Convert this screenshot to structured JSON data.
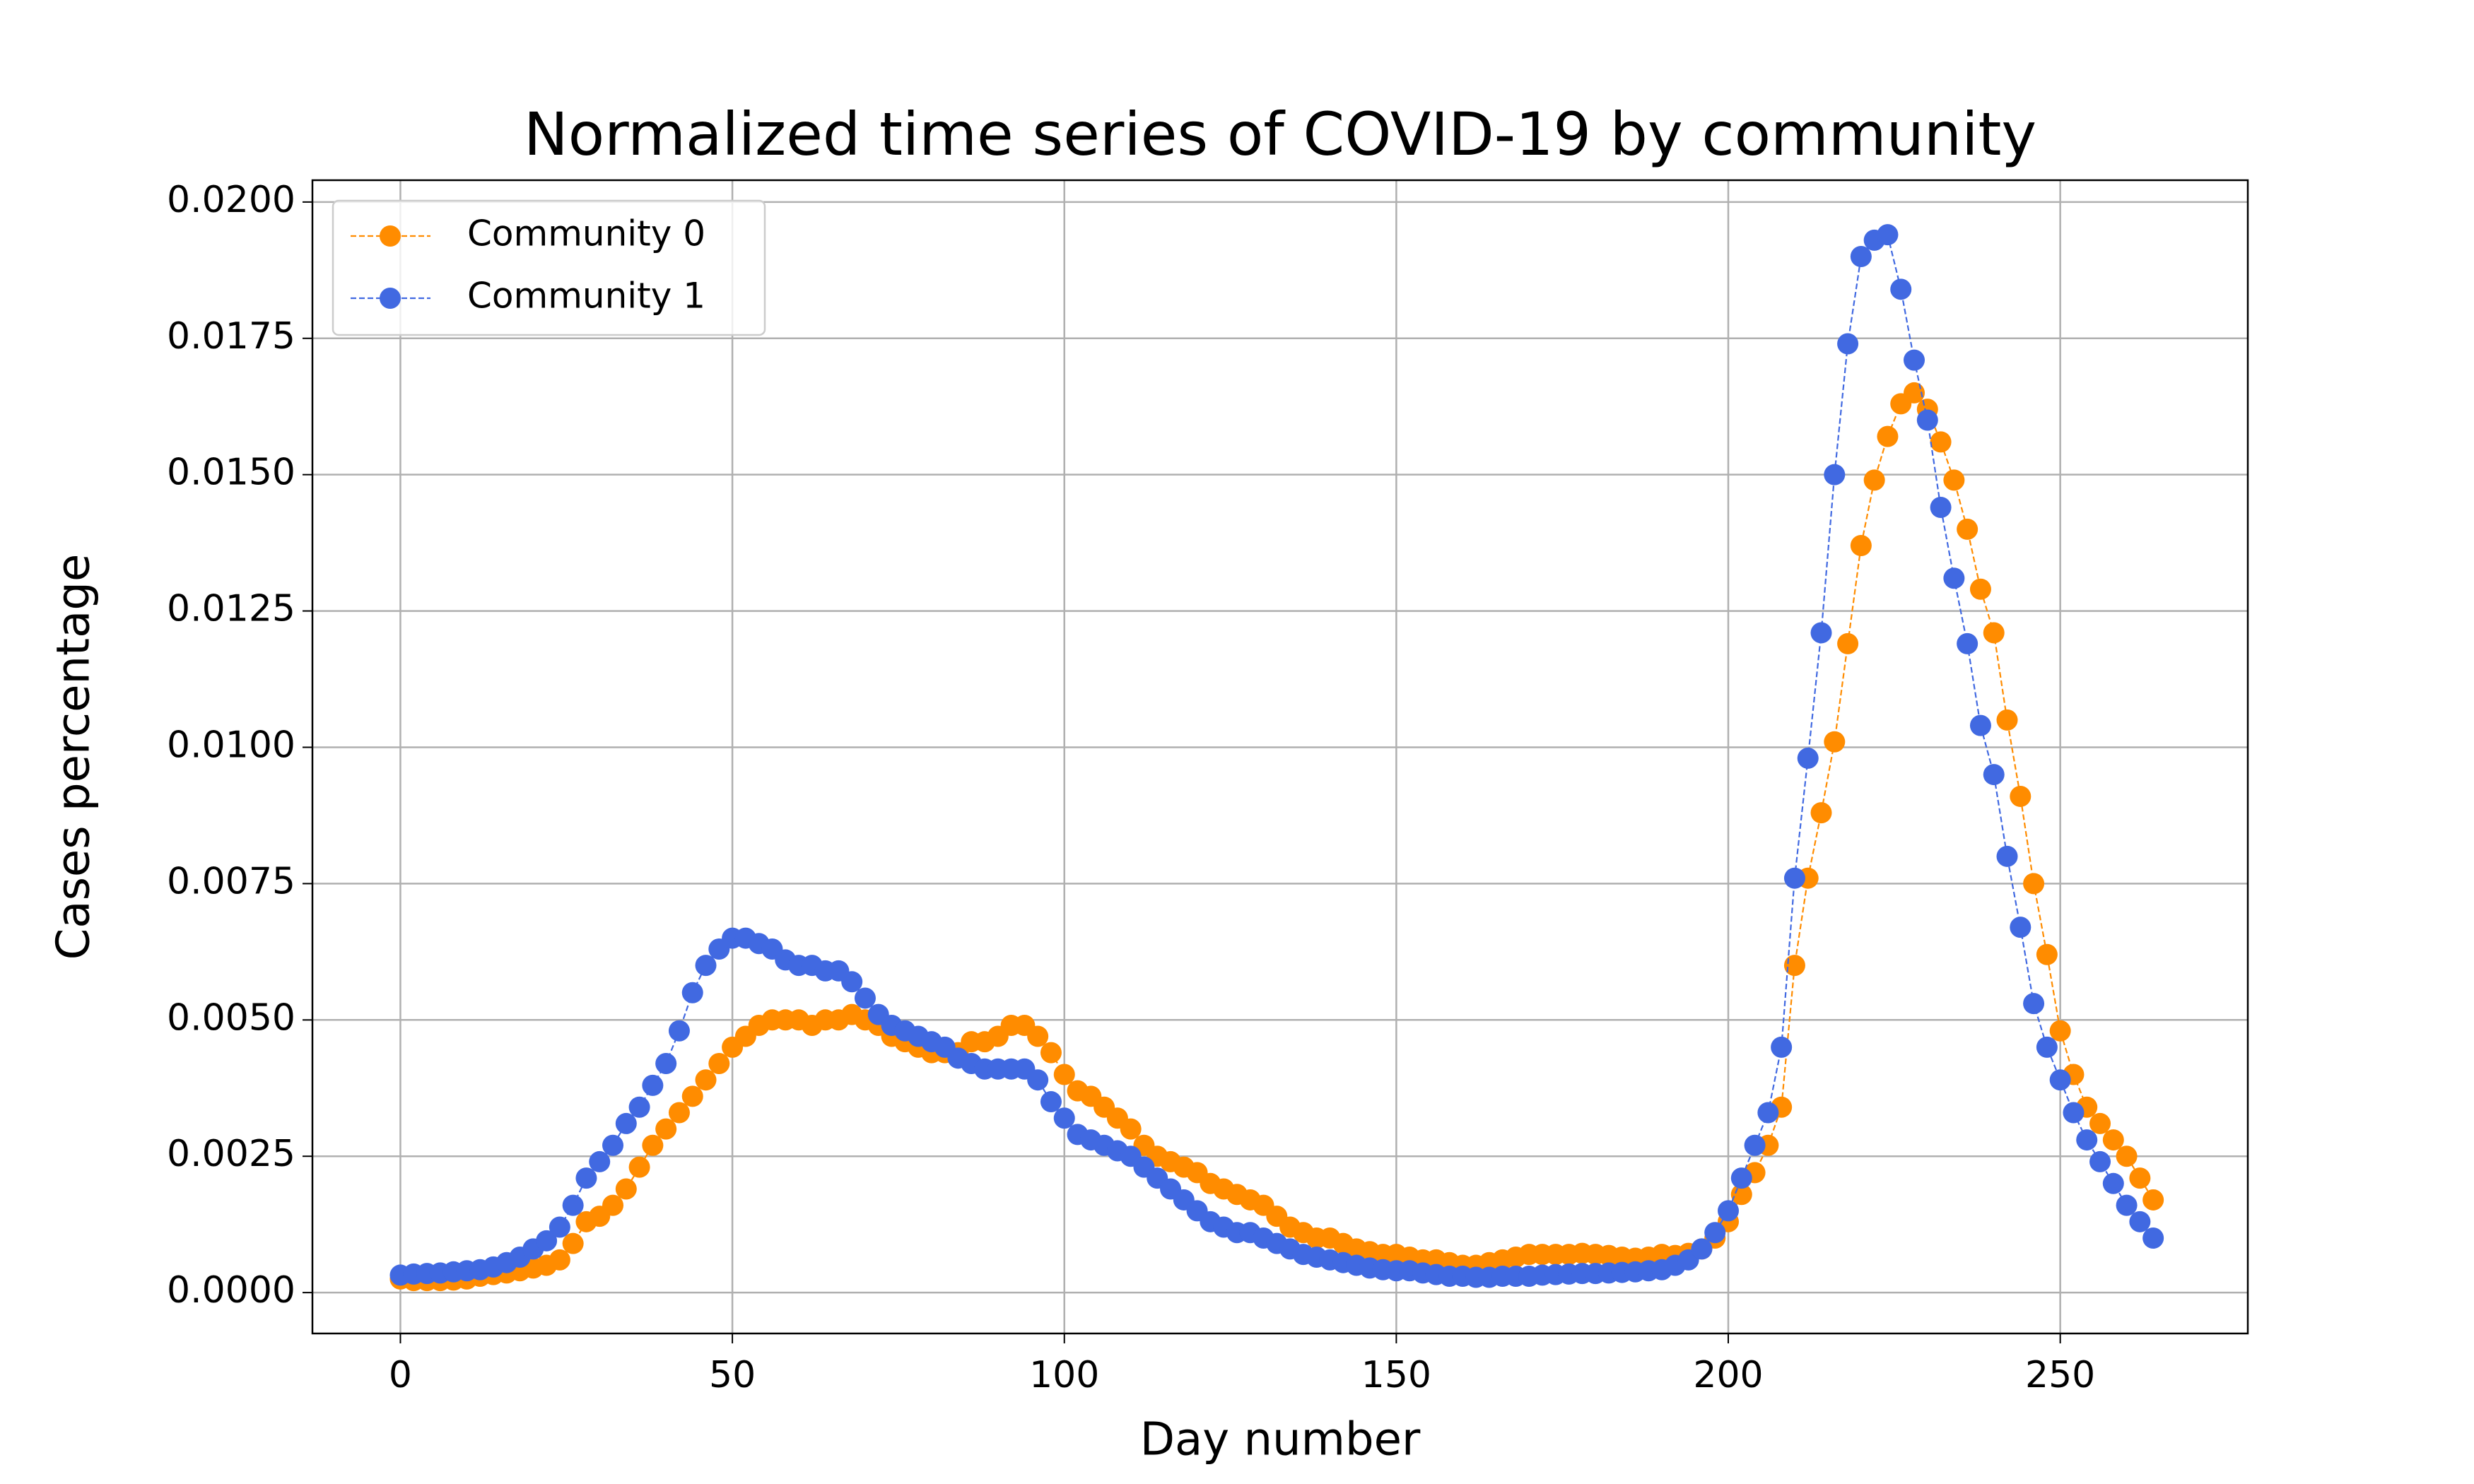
{
  "chart_data": {
    "type": "line",
    "title": "Normalized time series of COVID-19 by community",
    "xlabel": "Day number",
    "ylabel": "Cases percentage",
    "x": [
      0,
      2,
      4,
      6,
      8,
      10,
      12,
      14,
      16,
      18,
      20,
      22,
      24,
      26,
      28,
      30,
      32,
      34,
      36,
      38,
      40,
      42,
      44,
      46,
      48,
      50,
      52,
      54,
      56,
      58,
      60,
      62,
      64,
      66,
      68,
      70,
      72,
      74,
      76,
      78,
      80,
      82,
      84,
      86,
      88,
      90,
      92,
      94,
      96,
      98,
      100,
      102,
      104,
      106,
      108,
      110,
      112,
      114,
      116,
      118,
      120,
      122,
      124,
      126,
      128,
      130,
      132,
      134,
      136,
      138,
      140,
      142,
      144,
      146,
      148,
      150,
      152,
      154,
      156,
      158,
      160,
      162,
      164,
      166,
      168,
      170,
      172,
      174,
      176,
      178,
      180,
      182,
      184,
      186,
      188,
      190,
      192,
      194,
      196,
      198,
      200,
      202,
      204,
      206,
      208,
      210,
      212,
      214,
      216,
      218,
      220,
      222,
      224,
      226,
      228,
      230,
      232,
      234,
      236,
      238,
      240,
      242,
      244,
      246,
      248,
      250,
      252,
      254,
      256,
      258,
      260,
      262,
      264
    ],
    "series": [
      {
        "name": "Community 0",
        "color": "#ff8c00",
        "values": [
          0.00025,
          0.00022,
          0.00022,
          0.00022,
          0.00023,
          0.00025,
          0.0003,
          0.00033,
          0.00036,
          0.0004,
          0.00045,
          0.0005,
          0.0006,
          0.0009,
          0.0013,
          0.0014,
          0.0016,
          0.0019,
          0.0023,
          0.0027,
          0.003,
          0.0033,
          0.0036,
          0.0039,
          0.0042,
          0.0045,
          0.0047,
          0.0049,
          0.005,
          0.005,
          0.005,
          0.0049,
          0.005,
          0.005,
          0.0051,
          0.005,
          0.0049,
          0.0047,
          0.0046,
          0.0045,
          0.0044,
          0.0044,
          0.0044,
          0.0046,
          0.0046,
          0.0047,
          0.0049,
          0.0049,
          0.0047,
          0.0044,
          0.004,
          0.0037,
          0.0036,
          0.0034,
          0.0032,
          0.003,
          0.0027,
          0.0025,
          0.0024,
          0.0023,
          0.0022,
          0.002,
          0.0019,
          0.0018,
          0.0017,
          0.0016,
          0.0014,
          0.0012,
          0.0011,
          0.001,
          0.001,
          0.0009,
          0.0008,
          0.00075,
          0.0007,
          0.0007,
          0.00065,
          0.0006,
          0.0006,
          0.00055,
          0.0005,
          0.0005,
          0.00055,
          0.0006,
          0.00065,
          0.0007,
          0.0007,
          0.0007,
          0.0007,
          0.00072,
          0.0007,
          0.00068,
          0.00065,
          0.00063,
          0.00065,
          0.0007,
          0.00068,
          0.00072,
          0.0008,
          0.001,
          0.0013,
          0.0018,
          0.0022,
          0.0027,
          0.0034,
          0.006,
          0.0076,
          0.0088,
          0.0101,
          0.0119,
          0.0137,
          0.0149,
          0.0157,
          0.0163,
          0.0165,
          0.0162,
          0.0156,
          0.0149,
          0.014,
          0.0129,
          0.0121,
          0.0105,
          0.0091,
          0.0075,
          0.0062,
          0.0048,
          0.004,
          0.0034,
          0.0031,
          0.0028,
          0.0025,
          0.0021,
          0.0017
        ]
      },
      {
        "name": "Community 1",
        "color": "#4169e1",
        "values": [
          0.00032,
          0.00034,
          0.00035,
          0.00036,
          0.00038,
          0.0004,
          0.00042,
          0.00047,
          0.00055,
          0.00065,
          0.0008,
          0.00095,
          0.0012,
          0.0016,
          0.0021,
          0.0024,
          0.0027,
          0.0031,
          0.0034,
          0.0038,
          0.0042,
          0.0048,
          0.0055,
          0.006,
          0.0063,
          0.0065,
          0.0065,
          0.0064,
          0.0063,
          0.0061,
          0.006,
          0.006,
          0.0059,
          0.0059,
          0.0057,
          0.0054,
          0.0051,
          0.0049,
          0.0048,
          0.0047,
          0.0046,
          0.0045,
          0.0043,
          0.0042,
          0.0041,
          0.0041,
          0.0041,
          0.0041,
          0.0039,
          0.0035,
          0.0032,
          0.0029,
          0.0028,
          0.0027,
          0.0026,
          0.0025,
          0.0023,
          0.0021,
          0.0019,
          0.0017,
          0.0015,
          0.0013,
          0.0012,
          0.0011,
          0.0011,
          0.001,
          0.0009,
          0.0008,
          0.0007,
          0.00065,
          0.0006,
          0.00055,
          0.0005,
          0.00045,
          0.00042,
          0.0004,
          0.0004,
          0.00036,
          0.00033,
          0.0003,
          0.0003,
          0.00028,
          0.00028,
          0.0003,
          0.0003,
          0.0003,
          0.00032,
          0.00033,
          0.00034,
          0.00035,
          0.00035,
          0.00036,
          0.00037,
          0.00038,
          0.0004,
          0.00042,
          0.0005,
          0.0006,
          0.0008,
          0.0011,
          0.0015,
          0.0021,
          0.0027,
          0.0033,
          0.0045,
          0.0076,
          0.0098,
          0.0121,
          0.015,
          0.0174,
          0.019,
          0.0193,
          0.0194,
          0.0184,
          0.0171,
          0.016,
          0.0144,
          0.0131,
          0.0119,
          0.0104,
          0.0095,
          0.008,
          0.0067,
          0.0053,
          0.0045,
          0.0039,
          0.0033,
          0.0028,
          0.0024,
          0.002,
          0.0016,
          0.0013,
          0.001
        ]
      }
    ],
    "xlim": [
      -13.25,
      278.25
    ],
    "ylim": [
      -0.00075,
      0.0204
    ],
    "xticks": [
      0,
      50,
      100,
      150,
      200,
      250
    ],
    "yticks": [
      {
        "value": 0,
        "label": "0.0000"
      },
      {
        "value": 0.0025,
        "label": "0.0025"
      },
      {
        "value": 0.005,
        "label": "0.0050"
      },
      {
        "value": 0.0075,
        "label": "0.0075"
      },
      {
        "value": 0.01,
        "label": "0.0100"
      },
      {
        "value": 0.0125,
        "label": "0.0125"
      },
      {
        "value": 0.015,
        "label": "0.0150"
      },
      {
        "value": 0.0175,
        "label": "0.0175"
      },
      {
        "value": 0.02,
        "label": "0.0200"
      }
    ],
    "grid": true,
    "legend": "upper left"
  }
}
